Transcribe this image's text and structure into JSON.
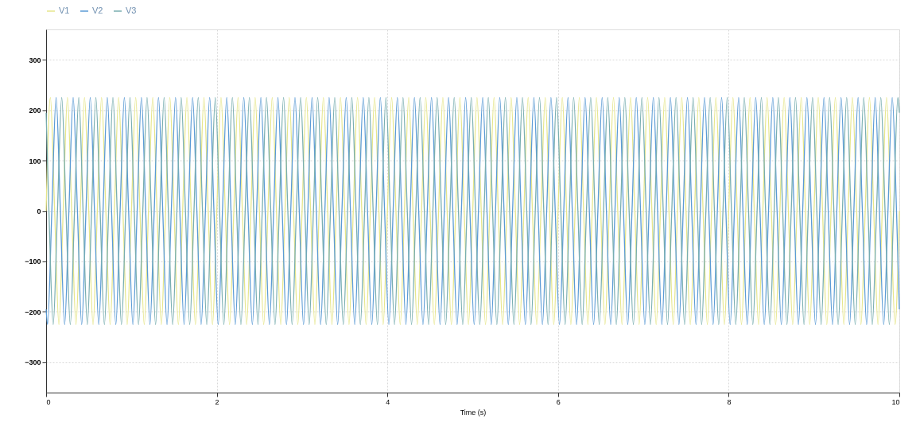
{
  "chart_data": {
    "type": "line",
    "xlabel": "Time (s)",
    "xlim": [
      0,
      10
    ],
    "xticks": [
      0,
      2,
      4,
      6,
      8,
      10
    ],
    "ylim": [
      -360,
      360
    ],
    "yticks": [
      -300,
      -200,
      -100,
      0,
      100,
      200,
      300
    ],
    "grid": true,
    "legend": "top left",
    "marker": "none",
    "line_style": "solid",
    "x": [
      0,
      0.05,
      0.1,
      0.15,
      0.2,
      0.25,
      0.3,
      0.35,
      0.4,
      0.45,
      0.5,
      0.55,
      0.6,
      0.65,
      0.7,
      0.75,
      0.8,
      0.85,
      0.9,
      0.95,
      1,
      1.05,
      1.1,
      1.15,
      1.2,
      1.25,
      1.3,
      1.35,
      1.4,
      1.45,
      1.5,
      1.55,
      1.6,
      1.65,
      1.7,
      1.75,
      1.8,
      1.85,
      1.9,
      1.95,
      2,
      2.05,
      2.1,
      2.15,
      2.2,
      2.25,
      2.3,
      2.35,
      2.4,
      2.45,
      2.5,
      2.55,
      2.6,
      2.65,
      2.7,
      2.75,
      2.8,
      2.85,
      2.9,
      2.95,
      3,
      3.05,
      3.1,
      3.15,
      3.2,
      3.25,
      3.3,
      3.35,
      3.4,
      3.45,
      3.5,
      3.55,
      3.6,
      3.65,
      3.7,
      3.75,
      3.8,
      3.85,
      3.9,
      3.95,
      4,
      4.05,
      4.1,
      4.15,
      4.2,
      4.25,
      4.3,
      4.35,
      4.4,
      4.45,
      4.5,
      4.55,
      4.6,
      4.65,
      4.7,
      4.75,
      4.8,
      4.85,
      4.9,
      4.95,
      5,
      5.05,
      5.1,
      5.15,
      5.2,
      5.25,
      5.3,
      5.35,
      5.4,
      5.45,
      5.5,
      5.55,
      5.6,
      5.65,
      5.7,
      5.75,
      5.8,
      5.85,
      5.9,
      5.95,
      6,
      6.05,
      6.1,
      6.15,
      6.2,
      6.25,
      6.3,
      6.35,
      6.4,
      6.45,
      6.5,
      6.55,
      6.6,
      6.65,
      6.7,
      6.75,
      6.8,
      6.85,
      6.9,
      6.95,
      7,
      7.05,
      7.1,
      7.15,
      7.2,
      7.25,
      7.3,
      7.35,
      7.4,
      7.45,
      7.5,
      7.55,
      7.6,
      7.65,
      7.7,
      7.75,
      7.8,
      7.85,
      7.9,
      7.95,
      8,
      8.05,
      8.1,
      8.15,
      8.2,
      8.25,
      8.3,
      8.35,
      8.4,
      8.45,
      8.5,
      8.55,
      8.6,
      8.65,
      8.7,
      8.75,
      8.8,
      8.85,
      8.9,
      8.95,
      9,
      9.05,
      9.1,
      9.15,
      9.2,
      9.25,
      9.3,
      9.35,
      9.4,
      9.45,
      9.5,
      9.55,
      9.6,
      9.65,
      9.7,
      9.75,
      9.8,
      9.85,
      9.9,
      9.95,
      10
    ],
    "series": [
      {
        "name": "V1",
        "color": "#e6e68c",
        "values": [
          0,
          225,
          0,
          -225,
          0,
          225,
          0,
          -225,
          0,
          225,
          0,
          -225,
          0,
          225,
          0,
          -225,
          0,
          225,
          0,
          -225,
          0,
          225,
          0,
          -225,
          0,
          225,
          0,
          -225,
          0,
          225,
          0,
          -225,
          0,
          225,
          0,
          -225,
          0,
          225,
          0,
          -225,
          0,
          225,
          0,
          -225,
          0,
          225,
          0,
          -225,
          0,
          225,
          0,
          -225,
          0,
          225,
          0,
          -225,
          0,
          225,
          0,
          -225,
          0,
          225,
          0,
          -225,
          0,
          225,
          0,
          -225,
          0,
          225,
          0,
          -225,
          0,
          225,
          0,
          -225,
          0,
          225,
          0,
          -225,
          0,
          225,
          0,
          -225,
          0,
          225,
          0,
          -225,
          0,
          225,
          0,
          -225,
          0,
          225,
          0,
          -225,
          0,
          225,
          0,
          -225,
          0,
          225,
          0,
          -225,
          0,
          225,
          0,
          -225,
          0,
          225,
          0,
          -225,
          0,
          225,
          0,
          -225,
          0,
          225,
          0,
          -225,
          0,
          225,
          0,
          -225,
          0,
          225,
          0,
          -225,
          0,
          225,
          0,
          -225,
          0,
          225,
          0,
          -225,
          0,
          225,
          0,
          -225,
          0,
          225,
          0,
          -225,
          0,
          225,
          0,
          -225,
          0,
          225,
          0,
          -225,
          0,
          225,
          0,
          -225,
          0,
          225,
          0,
          -225,
          0,
          225,
          0,
          -225,
          0,
          225,
          0,
          -225,
          0,
          225,
          0,
          -225,
          0,
          225,
          0,
          -225,
          0,
          225,
          0,
          -225,
          0,
          225,
          0,
          -225,
          0,
          225,
          0,
          -225,
          0,
          225,
          0,
          -225,
          0,
          225,
          0,
          -225,
          0,
          225,
          0,
          -225,
          0
        ]
      },
      {
        "name": "V2",
        "color": "#5b9bd5",
        "x": [
          0,
          0.017,
          0.067,
          0.117,
          0.167,
          0.217,
          0.267,
          0.317,
          0.367,
          0.417,
          0.467,
          0.517,
          0.567,
          0.617,
          0.667,
          0.717,
          0.767,
          0.817,
          0.867,
          0.917,
          0.967,
          1.017,
          1.067,
          1.117,
          1.167,
          1.217,
          1.267,
          1.317,
          1.367,
          1.417,
          1.467,
          1.517,
          1.567,
          1.617,
          1.667,
          1.717,
          1.767,
          1.817,
          1.867,
          1.917,
          1.967,
          2.017,
          2.067,
          2.117,
          2.167,
          2.217,
          2.267,
          2.317,
          2.367,
          2.417,
          2.467,
          2.517,
          2.567,
          2.617,
          2.667,
          2.717,
          2.767,
          2.817,
          2.867,
          2.917,
          2.967,
          3.017,
          3.067,
          3.117,
          3.167,
          3.217,
          3.267,
          3.317,
          3.367,
          3.417,
          3.467,
          3.517,
          3.567,
          3.617,
          3.667,
          3.717,
          3.767,
          3.817,
          3.867,
          3.917,
          3.967,
          4.017,
          4.067,
          4.117,
          4.167,
          4.217,
          4.267,
          4.317,
          4.367,
          4.417,
          4.467,
          4.517,
          4.567,
          4.617,
          4.667,
          4.717,
          4.767,
          4.817,
          4.867,
          4.917,
          4.967,
          5.017,
          5.067,
          5.117,
          5.167,
          5.217,
          5.267,
          5.317,
          5.367,
          5.417,
          5.467,
          5.517,
          5.567,
          5.617,
          5.667,
          5.717,
          5.767,
          5.817,
          5.867,
          5.917,
          5.967,
          6.017,
          6.067,
          6.117,
          6.167,
          6.217,
          6.267,
          6.317,
          6.367,
          6.417,
          6.467,
          6.517,
          6.567,
          6.617,
          6.667,
          6.717,
          6.767,
          6.817,
          6.867,
          6.917,
          6.967,
          7.017,
          7.067,
          7.117,
          7.167,
          7.217,
          7.267,
          7.317,
          7.367,
          7.417,
          7.467,
          7.517,
          7.567,
          7.617,
          7.667,
          7.717,
          7.767,
          7.817,
          7.867,
          7.917,
          7.967,
          8.017,
          8.067,
          8.117,
          8.167,
          8.217,
          8.267,
          8.317,
          8.367,
          8.417,
          8.467,
          8.517,
          8.567,
          8.617,
          8.667,
          8.717,
          8.767,
          8.817,
          8.867,
          8.917,
          8.967,
          9.017,
          9.067,
          9.117,
          9.167,
          9.217,
          9.267,
          9.317,
          9.367,
          9.417,
          9.467,
          9.517,
          9.567,
          9.617,
          9.667,
          9.717,
          9.767,
          9.817,
          9.867,
          9.917,
          9.967,
          10
        ],
        "values": [
          -195,
          -225,
          0,
          225,
          0,
          -225,
          0,
          225,
          0,
          -225,
          0,
          225,
          0,
          -225,
          0,
          225,
          0,
          -225,
          0,
          225,
          0,
          -225,
          0,
          225,
          0,
          -225,
          0,
          225,
          0,
          -225,
          0,
          225,
          0,
          -225,
          0,
          225,
          0,
          -225,
          0,
          225,
          0,
          -225,
          0,
          225,
          0,
          -225,
          0,
          225,
          0,
          -225,
          0,
          225,
          0,
          -225,
          0,
          225,
          0,
          -225,
          0,
          225,
          0,
          -225,
          0,
          225,
          0,
          -225,
          0,
          225,
          0,
          -225,
          0,
          225,
          0,
          -225,
          0,
          225,
          0,
          -225,
          0,
          225,
          0,
          -225,
          0,
          225,
          0,
          -225,
          0,
          225,
          0,
          -225,
          0,
          225,
          0,
          -225,
          0,
          225,
          0,
          -225,
          0,
          225,
          0,
          -225,
          0,
          225,
          0,
          -225,
          0,
          225,
          0,
          -225,
          0,
          225,
          0,
          -225,
          0,
          225,
          0,
          -225,
          0,
          225,
          0,
          -225,
          0,
          225,
          0,
          -225,
          0,
          225,
          0,
          -225,
          0,
          225,
          0,
          -225,
          0,
          225,
          0,
          -225,
          0,
          225,
          0,
          -225,
          0,
          225,
          0,
          -225,
          0,
          225,
          0,
          -225,
          0,
          225,
          0,
          -225,
          0,
          225,
          0,
          -225,
          0,
          225,
          0,
          -225,
          0,
          225,
          0,
          -225,
          0,
          225,
          0,
          -225,
          0,
          225,
          0,
          -225,
          0,
          225,
          0,
          -225,
          0,
          225,
          0,
          -225,
          0,
          225,
          0,
          -225,
          0,
          225,
          0,
          -225,
          0,
          225,
          0,
          -225,
          0,
          225,
          0,
          -225,
          0,
          225,
          0,
          -195
        ]
      },
      {
        "name": "V3",
        "color": "#79aeb0",
        "x": [
          0,
          0.033,
          0.083,
          0.133,
          0.183,
          0.233,
          0.283,
          0.333,
          0.383,
          0.433,
          0.483,
          0.533,
          0.583,
          0.633,
          0.683,
          0.733,
          0.783,
          0.833,
          0.883,
          0.933,
          0.983,
          1.033,
          1.083,
          1.133,
          1.183,
          1.233,
          1.283,
          1.333,
          1.383,
          1.433,
          1.483,
          1.533,
          1.583,
          1.633,
          1.683,
          1.733,
          1.783,
          1.833,
          1.883,
          1.933,
          1.983,
          2.033,
          2.083,
          2.133,
          2.183,
          2.233,
          2.283,
          2.333,
          2.383,
          2.433,
          2.483,
          2.533,
          2.583,
          2.633,
          2.683,
          2.733,
          2.783,
          2.833,
          2.883,
          2.933,
          2.983,
          3.033,
          3.083,
          3.133,
          3.183,
          3.233,
          3.283,
          3.333,
          3.383,
          3.433,
          3.483,
          3.533,
          3.583,
          3.633,
          3.683,
          3.733,
          3.783,
          3.833,
          3.883,
          3.933,
          3.983,
          4.033,
          4.083,
          4.133,
          4.183,
          4.233,
          4.283,
          4.333,
          4.383,
          4.433,
          4.483,
          4.533,
          4.583,
          4.633,
          4.683,
          4.733,
          4.783,
          4.833,
          4.883,
          4.933,
          4.983,
          5.033,
          5.083,
          5.133,
          5.183,
          5.233,
          5.283,
          5.333,
          5.383,
          5.433,
          5.483,
          5.533,
          5.583,
          5.633,
          5.683,
          5.733,
          5.783,
          5.833,
          5.883,
          5.933,
          5.983,
          6.033,
          6.083,
          6.133,
          6.183,
          6.233,
          6.283,
          6.333,
          6.383,
          6.433,
          6.483,
          6.533,
          6.583,
          6.633,
          6.683,
          6.733,
          6.783,
          6.833,
          6.883,
          6.933,
          6.983,
          7.033,
          7.083,
          7.133,
          7.183,
          7.233,
          7.283,
          7.333,
          7.383,
          7.433,
          7.483,
          7.533,
          7.583,
          7.633,
          7.683,
          7.733,
          7.783,
          7.833,
          7.883,
          7.933,
          7.983,
          8.033,
          8.083,
          8.133,
          8.183,
          8.233,
          8.283,
          8.333,
          8.383,
          8.433,
          8.483,
          8.533,
          8.583,
          8.633,
          8.683,
          8.733,
          8.783,
          8.833,
          8.883,
          8.933,
          8.983,
          9.033,
          9.083,
          9.133,
          9.183,
          9.233,
          9.283,
          9.333,
          9.383,
          9.433,
          9.483,
          9.533,
          9.583,
          9.633,
          9.683,
          9.733,
          9.783,
          9.833,
          9.883,
          9.933,
          9.983,
          10
        ],
        "values": [
          195,
          0,
          -225,
          0,
          225,
          0,
          -225,
          0,
          225,
          0,
          -225,
          0,
          225,
          0,
          -225,
          0,
          225,
          0,
          -225,
          0,
          225,
          0,
          -225,
          0,
          225,
          0,
          -225,
          0,
          225,
          0,
          -225,
          0,
          225,
          0,
          -225,
          0,
          225,
          0,
          -225,
          0,
          225,
          0,
          -225,
          0,
          225,
          0,
          -225,
          0,
          225,
          0,
          -225,
          0,
          225,
          0,
          -225,
          0,
          225,
          0,
          -225,
          0,
          225,
          0,
          -225,
          0,
          225,
          0,
          -225,
          0,
          225,
          0,
          -225,
          0,
          225,
          0,
          -225,
          0,
          225,
          0,
          -225,
          0,
          225,
          0,
          -225,
          0,
          225,
          0,
          -225,
          0,
          225,
          0,
          -225,
          0,
          225,
          0,
          -225,
          0,
          225,
          0,
          -225,
          0,
          225,
          0,
          -225,
          0,
          225,
          0,
          -225,
          0,
          225,
          0,
          -225,
          0,
          225,
          0,
          -225,
          0,
          225,
          0,
          -225,
          0,
          225,
          0,
          -225,
          0,
          225,
          0,
          -225,
          0,
          225,
          0,
          -225,
          0,
          225,
          0,
          -225,
          0,
          225,
          0,
          -225,
          0,
          225,
          0,
          -225,
          0,
          225,
          0,
          -225,
          0,
          225,
          0,
          -225,
          0,
          225,
          0,
          -225,
          0,
          225,
          0,
          -225,
          0,
          225,
          0,
          -225,
          0,
          225,
          0,
          -225,
          0,
          225,
          0,
          -225,
          0,
          225,
          0,
          -225,
          0,
          225,
          0,
          -225,
          0,
          225,
          0,
          -225,
          0,
          225,
          0,
          -225,
          0,
          225,
          0,
          -225,
          0,
          225,
          0,
          -225,
          0,
          225,
          0,
          -225,
          0,
          225,
          195
        ]
      }
    ]
  }
}
